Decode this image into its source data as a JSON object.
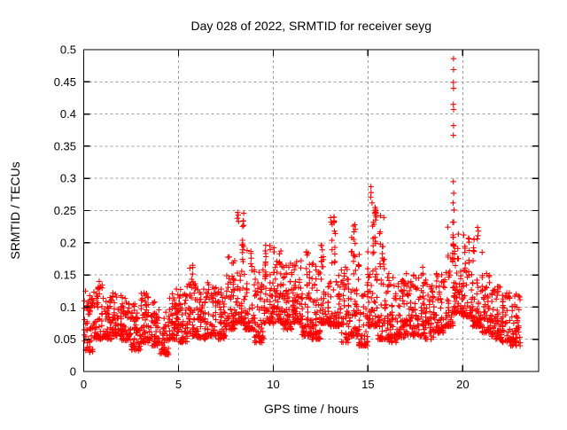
{
  "window": {
    "background": "#ffffff"
  },
  "chart_data": {
    "type": "scatter",
    "title": "Day 028 of 2022, SRMTID for receiver seyg",
    "xlabel": "GPS time / hours",
    "ylabel": "SRMTID / TECUs",
    "xlim": [
      0,
      24
    ],
    "ylim": [
      0,
      0.5
    ],
    "xticks": [
      0,
      5,
      10,
      15,
      20
    ],
    "yticks": [
      0,
      0.05,
      0.1,
      0.15,
      0.2,
      0.25,
      0.3,
      0.35,
      0.4,
      0.45,
      0.5
    ],
    "grid": true,
    "grid_style": "dashed",
    "legend_position": "none",
    "marker": {
      "symbol": "plus",
      "color": "#ff0000",
      "size": 7
    },
    "axis_color": "#000000",
    "grid_color": "#9a9a9a",
    "series": [
      {
        "name": "SRMTID",
        "x_start_hours": 0.0,
        "x_end_hours": 23.05,
        "band_bins": [
          [
            0.0,
            0.5,
            55,
            0.03,
            0.125
          ],
          [
            0.5,
            1.0,
            55,
            0.05,
            0.14
          ],
          [
            1.0,
            1.5,
            55,
            0.05,
            0.115
          ],
          [
            1.5,
            2.0,
            55,
            0.055,
            0.122
          ],
          [
            2.0,
            2.5,
            55,
            0.048,
            0.115
          ],
          [
            2.5,
            3.0,
            55,
            0.032,
            0.105
          ],
          [
            3.0,
            3.5,
            55,
            0.045,
            0.122
          ],
          [
            3.5,
            4.0,
            55,
            0.04,
            0.108
          ],
          [
            4.0,
            4.5,
            50,
            0.026,
            0.092
          ],
          [
            4.5,
            5.0,
            55,
            0.05,
            0.128
          ],
          [
            5.0,
            5.5,
            55,
            0.045,
            0.132
          ],
          [
            5.5,
            6.0,
            55,
            0.055,
            0.165
          ],
          [
            6.0,
            6.5,
            55,
            0.05,
            0.128
          ],
          [
            6.5,
            7.0,
            55,
            0.055,
            0.138
          ],
          [
            7.0,
            7.5,
            55,
            0.05,
            0.128
          ],
          [
            7.5,
            8.0,
            60,
            0.065,
            0.178
          ],
          [
            8.0,
            8.5,
            65,
            0.075,
            0.246
          ],
          [
            8.5,
            9.0,
            60,
            0.065,
            0.188
          ],
          [
            9.0,
            9.5,
            55,
            0.045,
            0.158
          ],
          [
            9.5,
            10.0,
            60,
            0.075,
            0.196
          ],
          [
            10.0,
            10.5,
            60,
            0.075,
            0.192
          ],
          [
            10.5,
            11.0,
            60,
            0.065,
            0.168
          ],
          [
            11.0,
            11.5,
            60,
            0.075,
            0.172
          ],
          [
            11.5,
            12.0,
            60,
            0.055,
            0.186
          ],
          [
            12.0,
            12.5,
            60,
            0.05,
            0.168
          ],
          [
            12.5,
            13.0,
            60,
            0.075,
            0.196
          ],
          [
            13.0,
            13.5,
            60,
            0.07,
            0.24
          ],
          [
            13.5,
            14.0,
            55,
            0.045,
            0.162
          ],
          [
            14.0,
            14.5,
            60,
            0.055,
            0.226
          ],
          [
            14.5,
            15.0,
            60,
            0.04,
            0.186
          ],
          [
            15.0,
            15.5,
            65,
            0.07,
            0.262
          ],
          [
            15.5,
            16.0,
            60,
            0.05,
            0.242
          ],
          [
            16.0,
            16.5,
            55,
            0.045,
            0.152
          ],
          [
            16.5,
            17.0,
            55,
            0.05,
            0.142
          ],
          [
            17.0,
            17.5,
            55,
            0.055,
            0.152
          ],
          [
            17.5,
            18.0,
            55,
            0.055,
            0.162
          ],
          [
            18.0,
            18.5,
            55,
            0.05,
            0.142
          ],
          [
            18.5,
            19.0,
            55,
            0.06,
            0.152
          ],
          [
            19.0,
            19.5,
            60,
            0.07,
            0.232
          ],
          [
            19.5,
            20.0,
            65,
            0.09,
            0.232
          ],
          [
            20.0,
            20.5,
            60,
            0.085,
            0.212
          ],
          [
            20.5,
            21.0,
            60,
            0.07,
            0.206
          ],
          [
            21.0,
            21.5,
            55,
            0.06,
            0.152
          ],
          [
            21.5,
            22.0,
            55,
            0.05,
            0.132
          ],
          [
            22.0,
            22.5,
            55,
            0.045,
            0.122
          ],
          [
            22.5,
            23.05,
            60,
            0.04,
            0.12
          ]
        ],
        "standout_points": [
          [
            19.51,
            0.486
          ],
          [
            19.51,
            0.469
          ],
          [
            19.505,
            0.449
          ],
          [
            19.51,
            0.44
          ],
          [
            19.5,
            0.415
          ],
          [
            19.515,
            0.407
          ],
          [
            19.51,
            0.382
          ],
          [
            19.5,
            0.367
          ],
          [
            19.5,
            0.295
          ],
          [
            19.52,
            0.277
          ],
          [
            19.49,
            0.262
          ],
          [
            19.53,
            0.251
          ],
          [
            15.15,
            0.287
          ],
          [
            15.16,
            0.278
          ],
          [
            15.14,
            0.271
          ],
          [
            15.37,
            0.255
          ],
          [
            15.4,
            0.252
          ],
          [
            15.38,
            0.248
          ],
          [
            15.42,
            0.246
          ],
          [
            15.39,
            0.243
          ],
          [
            15.43,
            0.24
          ],
          [
            15.36,
            0.246
          ],
          [
            15.41,
            0.25
          ],
          [
            8.12,
            0.247
          ],
          [
            8.15,
            0.243
          ],
          [
            8.1,
            0.238
          ],
          [
            8.17,
            0.233
          ],
          [
            13.02,
            0.239
          ],
          [
            13.05,
            0.232
          ],
          [
            14.3,
            0.228
          ],
          [
            14.33,
            0.221
          ],
          [
            20.78,
            0.224
          ],
          [
            20.82,
            0.218
          ],
          [
            20.8,
            0.211
          ],
          [
            20.76,
            0.206
          ]
        ],
        "seed": 20220128
      }
    ]
  }
}
